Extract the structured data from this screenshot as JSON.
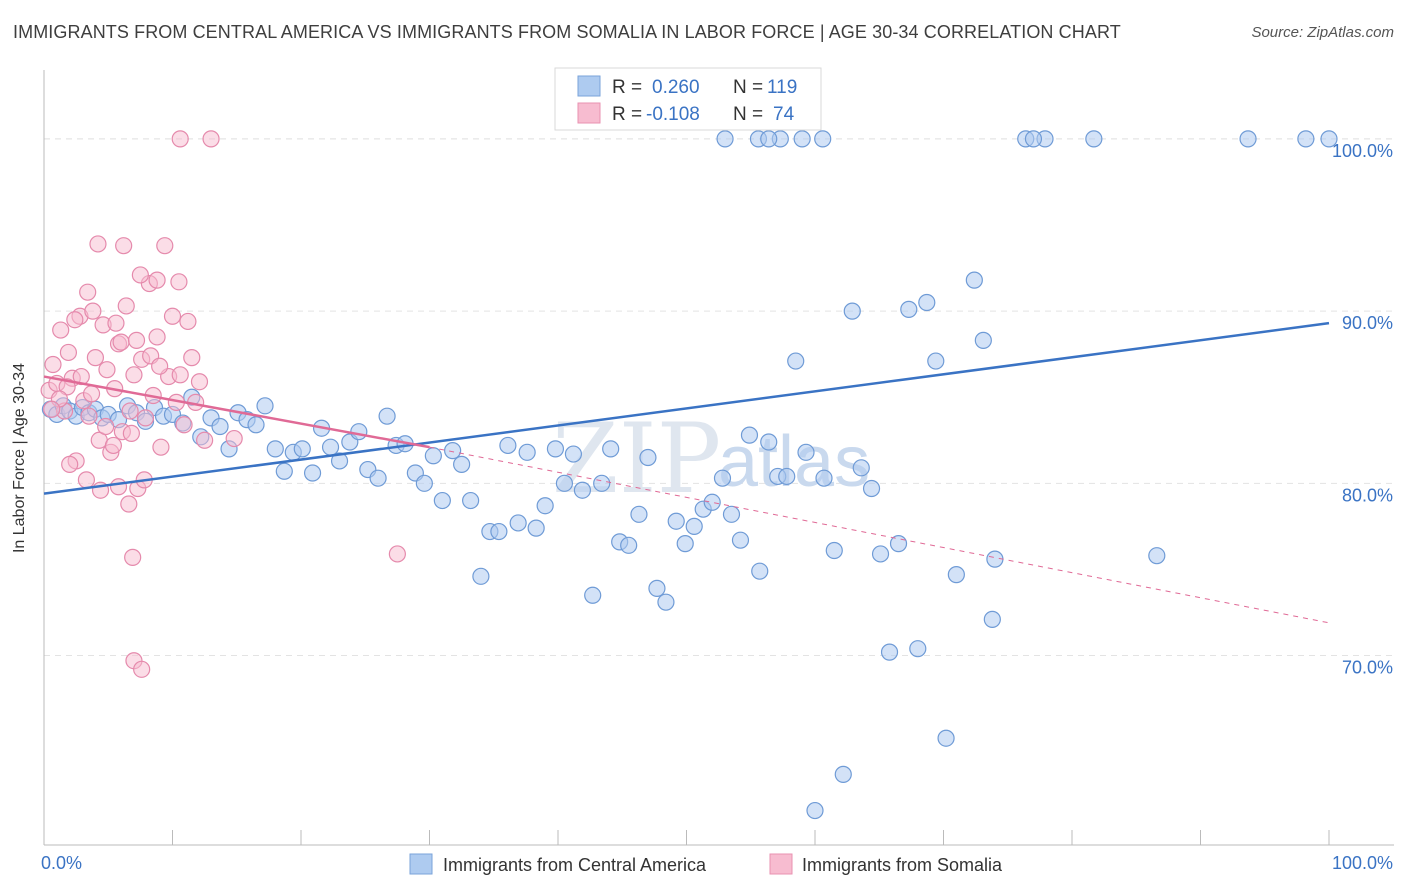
{
  "title": "IMMIGRANTS FROM CENTRAL AMERICA VS IMMIGRANTS FROM SOMALIA IN LABOR FORCE | AGE 30-34 CORRELATION CHART",
  "source": "Source: ZipAtlas.com",
  "watermark": {
    "zip": "ZIP",
    "atlas": "atlas"
  },
  "colors": {
    "blue": "#3a73c4",
    "blue_fill": "#aecbf0",
    "pink": "#e06a96",
    "pink_fill": "#f7bcd0",
    "grid": "#e3e3e3"
  },
  "chart_data": {
    "type": "scatter",
    "title": "IMMIGRANTS FROM CENTRAL AMERICA VS IMMIGRANTS FROM SOMALIA IN LABOR FORCE | AGE 30-34 CORRELATION CHART",
    "xlabel": "",
    "ylabel": "In Labor Force | Age 30-34",
    "xlim": [
      0,
      100
    ],
    "ylim": [
      59,
      104
    ],
    "x_tick_labels": [
      "0.0%",
      "100.0%"
    ],
    "y_ticks": [
      70,
      80,
      90,
      100
    ],
    "y_tick_labels": [
      "70.0%",
      "80.0%",
      "90.0%",
      "100.0%"
    ],
    "grid": true,
    "legend_position": "bottom",
    "stats": [
      {
        "r_label": "R =",
        "r": "0.260",
        "n_label": "N =",
        "n": "119"
      },
      {
        "r_label": "R =",
        "r": "-0.108",
        "n_label": "N =",
        "n": "74"
      }
    ],
    "series": [
      {
        "name": "Immigrants from Central America",
        "color": "#3a73c4",
        "trend": {
          "x0": 0,
          "y0": 79.4,
          "x1": 100,
          "y1": 89.3
        },
        "points": [
          [
            0.5,
            84.3
          ],
          [
            1.0,
            84.0
          ],
          [
            1.5,
            84.5
          ],
          [
            2.0,
            84.2
          ],
          [
            2.5,
            83.9
          ],
          [
            3.0,
            84.4
          ],
          [
            3.5,
            84.1
          ],
          [
            4.0,
            84.3
          ],
          [
            4.5,
            83.8
          ],
          [
            5.0,
            84.0
          ],
          [
            5.8,
            83.7
          ],
          [
            6.5,
            84.5
          ],
          [
            7.2,
            84.1
          ],
          [
            7.9,
            83.6
          ],
          [
            8.6,
            84.4
          ],
          [
            9.3,
            83.9
          ],
          [
            10.0,
            84.0
          ],
          [
            10.8,
            83.5
          ],
          [
            11.5,
            85.0
          ],
          [
            12.2,
            82.7
          ],
          [
            13.0,
            83.8
          ],
          [
            13.7,
            83.3
          ],
          [
            14.4,
            82.0
          ],
          [
            15.1,
            84.1
          ],
          [
            15.8,
            83.7
          ],
          [
            16.5,
            83.4
          ],
          [
            17.2,
            84.5
          ],
          [
            18.0,
            82.0
          ],
          [
            18.7,
            80.7
          ],
          [
            19.4,
            81.8
          ],
          [
            20.1,
            82.0
          ],
          [
            20.9,
            80.6
          ],
          [
            21.6,
            83.2
          ],
          [
            22.3,
            82.1
          ],
          [
            23.0,
            81.3
          ],
          [
            23.8,
            82.4
          ],
          [
            24.5,
            83.0
          ],
          [
            25.2,
            80.8
          ],
          [
            26.0,
            80.3
          ],
          [
            26.7,
            83.9
          ],
          [
            27.4,
            82.2
          ],
          [
            28.1,
            82.3
          ],
          [
            28.9,
            80.6
          ],
          [
            29.6,
            80.0
          ],
          [
            30.3,
            81.6
          ],
          [
            31.0,
            79.0
          ],
          [
            31.8,
            81.9
          ],
          [
            32.5,
            81.1
          ],
          [
            33.2,
            79.0
          ],
          [
            34.0,
            74.6
          ],
          [
            34.7,
            77.2
          ],
          [
            35.4,
            77.2
          ],
          [
            36.1,
            82.2
          ],
          [
            36.9,
            77.7
          ],
          [
            37.6,
            81.8
          ],
          [
            38.3,
            77.4
          ],
          [
            39.0,
            78.7
          ],
          [
            39.8,
            82.0
          ],
          [
            40.5,
            80.0
          ],
          [
            41.2,
            81.7
          ],
          [
            41.9,
            79.6
          ],
          [
            42.7,
            73.5
          ],
          [
            43.4,
            80.0
          ],
          [
            44.1,
            82.0
          ],
          [
            44.8,
            76.6
          ],
          [
            45.5,
            76.4
          ],
          [
            46.3,
            78.2
          ],
          [
            47.0,
            81.5
          ],
          [
            47.7,
            73.9
          ],
          [
            48.4,
            73.1
          ],
          [
            49.2,
            77.8
          ],
          [
            49.9,
            76.5
          ],
          [
            50.6,
            77.5
          ],
          [
            51.3,
            78.5
          ],
          [
            52.0,
            78.9
          ],
          [
            52.8,
            80.3
          ],
          [
            53.5,
            78.2
          ],
          [
            54.2,
            76.7
          ],
          [
            54.9,
            82.8
          ],
          [
            55.7,
            74.9
          ],
          [
            56.4,
            82.4
          ],
          [
            57.1,
            80.4
          ],
          [
            57.8,
            80.4
          ],
          [
            58.5,
            87.1
          ],
          [
            59.3,
            81.8
          ],
          [
            60.0,
            61.0
          ],
          [
            60.7,
            80.3
          ],
          [
            61.5,
            76.1
          ],
          [
            62.2,
            63.1
          ],
          [
            62.9,
            90.0
          ],
          [
            63.6,
            80.9
          ],
          [
            64.4,
            79.7
          ],
          [
            65.1,
            75.9
          ],
          [
            65.8,
            70.2
          ],
          [
            66.5,
            76.5
          ],
          [
            67.3,
            90.1
          ],
          [
            68.0,
            70.4
          ],
          [
            68.7,
            90.5
          ],
          [
            69.4,
            87.1
          ],
          [
            70.2,
            65.2
          ],
          [
            71.0,
            74.7
          ],
          [
            72.4,
            91.8
          ],
          [
            73.1,
            88.3
          ],
          [
            73.8,
            72.1
          ],
          [
            74.0,
            75.6
          ],
          [
            76.4,
            100.0
          ],
          [
            77.9,
            100.0
          ],
          [
            81.7,
            100.0
          ],
          [
            86.6,
            75.8
          ],
          [
            93.7,
            100.0
          ],
          [
            98.2,
            100.0
          ],
          [
            100.0,
            100.0
          ],
          [
            53.0,
            100.0
          ],
          [
            55.6,
            100.0
          ],
          [
            59.0,
            100.0
          ],
          [
            60.6,
            100.0
          ],
          [
            57.3,
            100.0
          ],
          [
            56.4,
            100.0
          ],
          [
            77.0,
            100.0
          ]
        ]
      },
      {
        "name": "Immigrants from Somalia",
        "color": "#e06a96",
        "trend": {
          "x0": 0,
          "y0": 86.2,
          "x1": 30,
          "y1": 82.1,
          "dash_x1": 100,
          "dash_y1": 71.9
        },
        "points": [
          [
            0.4,
            85.4
          ],
          [
            0.7,
            86.9
          ],
          [
            1.0,
            85.8
          ],
          [
            1.3,
            88.9
          ],
          [
            1.6,
            84.2
          ],
          [
            1.9,
            87.6
          ],
          [
            2.2,
            86.1
          ],
          [
            2.5,
            81.3
          ],
          [
            2.8,
            89.7
          ],
          [
            3.1,
            84.8
          ],
          [
            3.4,
            91.1
          ],
          [
            3.7,
            85.2
          ],
          [
            4.0,
            87.3
          ],
          [
            4.3,
            82.5
          ],
          [
            4.6,
            89.2
          ],
          [
            4.9,
            86.6
          ],
          [
            5.2,
            81.8
          ],
          [
            5.5,
            85.5
          ],
          [
            5.8,
            88.1
          ],
          [
            6.1,
            83.0
          ],
          [
            6.4,
            90.3
          ],
          [
            6.7,
            84.2
          ],
          [
            7.0,
            86.3
          ],
          [
            7.3,
            79.7
          ],
          [
            7.6,
            87.2
          ],
          [
            7.9,
            83.8
          ],
          [
            8.2,
            91.6
          ],
          [
            8.5,
            85.1
          ],
          [
            8.8,
            88.5
          ],
          [
            9.1,
            82.1
          ],
          [
            9.4,
            93.8
          ],
          [
            9.7,
            86.2
          ],
          [
            10.0,
            89.7
          ],
          [
            10.3,
            84.7
          ],
          [
            10.6,
            86.3
          ],
          [
            10.9,
            83.4
          ],
          [
            11.2,
            89.4
          ],
          [
            11.5,
            87.3
          ],
          [
            11.8,
            84.7
          ],
          [
            12.1,
            85.9
          ],
          [
            4.2,
            93.9
          ],
          [
            6.2,
            93.8
          ],
          [
            7.5,
            92.1
          ],
          [
            8.8,
            91.8
          ],
          [
            10.5,
            91.7
          ],
          [
            2.4,
            89.5
          ],
          [
            3.8,
            90.0
          ],
          [
            5.6,
            89.3
          ],
          [
            6.0,
            88.2
          ],
          [
            7.2,
            88.3
          ],
          [
            8.3,
            87.4
          ],
          [
            9.0,
            86.8
          ],
          [
            2.9,
            86.2
          ],
          [
            1.8,
            85.6
          ],
          [
            1.2,
            84.9
          ],
          [
            0.6,
            84.3
          ],
          [
            3.5,
            83.9
          ],
          [
            4.8,
            83.3
          ],
          [
            6.8,
            82.9
          ],
          [
            5.4,
            82.2
          ],
          [
            2.0,
            81.1
          ],
          [
            3.3,
            80.2
          ],
          [
            5.8,
            79.8
          ],
          [
            6.6,
            78.8
          ],
          [
            4.4,
            79.6
          ],
          [
            7.8,
            80.2
          ],
          [
            6.9,
            75.7
          ],
          [
            7.0,
            69.7
          ],
          [
            7.6,
            69.2
          ],
          [
            27.5,
            75.9
          ],
          [
            10.6,
            100.0
          ],
          [
            13.0,
            100.0
          ],
          [
            12.5,
            82.5
          ],
          [
            14.8,
            82.6
          ]
        ]
      }
    ]
  },
  "legend": {
    "items": [
      {
        "label": "Immigrants from Central America",
        "color": "#aecbf0",
        "stroke": "#7aa3da"
      },
      {
        "label": "Immigrants from Somalia",
        "color": "#f7bcd0",
        "stroke": "#e892b1"
      }
    ]
  }
}
